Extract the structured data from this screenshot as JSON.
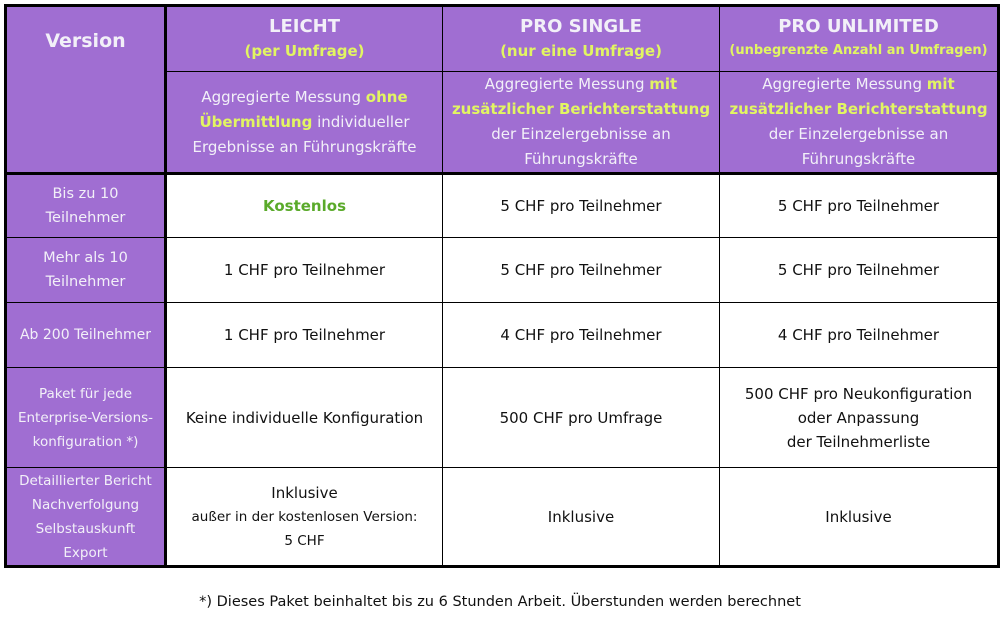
{
  "colors": {
    "header_bg": "#A06ED2",
    "highlight": "#E2F562",
    "free": "#5AAA2A"
  },
  "header": {
    "version_label": "Version",
    "columns": [
      {
        "title": "LEICHT",
        "subtitle": "(per Umfrage)",
        "desc_pre": "Aggregierte Messung ",
        "desc_hl": "ohne Übermittlung",
        "desc_post": " individueller Ergebnisse an Führungskräfte"
      },
      {
        "title": "PRO SINGLE",
        "subtitle": "(nur eine Umfrage)",
        "desc_pre": "Aggregierte Messung ",
        "desc_hl": "mit zusätzlicher Berichterstattung",
        "desc_post": " der Einzelergebnisse an Führungskräfte"
      },
      {
        "title": "PRO UNLIMITED",
        "subtitle": "(unbegrenzte Anzahl an Umfragen)",
        "desc_pre": "Aggregierte Messung ",
        "desc_hl": "mit zusätzlicher Berichterstattung",
        "desc_post": " der Einzelergebnisse an Führungskräfte"
      }
    ]
  },
  "rows": [
    {
      "label": "Bis zu 10 Teilnehmer",
      "cells": [
        "Kostenlos",
        "5 CHF pro Teilnehmer",
        "5 CHF pro Teilnehmer"
      ]
    },
    {
      "label": "Mehr als 10 Teilnehmer",
      "cells": [
        "1 CHF pro Teilnehmer",
        "5 CHF pro Teilnehmer",
        "5 CHF pro Teilnehmer"
      ]
    },
    {
      "label": "Ab 200 Teilnehmer",
      "cells": [
        "1 CHF pro Teilnehmer",
        "4 CHF pro Teilnehmer",
        "4 CHF pro Teilnehmer"
      ]
    },
    {
      "label_lines": [
        "Paket für jede",
        "Enterprise-Versions-",
        "konfiguration *)"
      ],
      "cells": [
        "Keine individuelle Konfiguration",
        "500 CHF pro Umfrage"
      ],
      "cell3_lines": [
        "500 CHF pro Neukonfiguration",
        "oder Anpassung",
        "der Teilnehmerliste"
      ]
    },
    {
      "label_lines": [
        "Detaillierter Bericht",
        "Nachverfolgung",
        "Selbstauskunft",
        "Export"
      ],
      "cell1_lines": [
        "Inklusive",
        "außer in der kostenlosen Version:",
        "5 CHF"
      ],
      "cells": [
        "Inklusive",
        "Inklusive"
      ]
    }
  ],
  "footnote": "*) Dieses Paket beinhaltet bis zu 6 Stunden Arbeit. Überstunden werden berechnet"
}
